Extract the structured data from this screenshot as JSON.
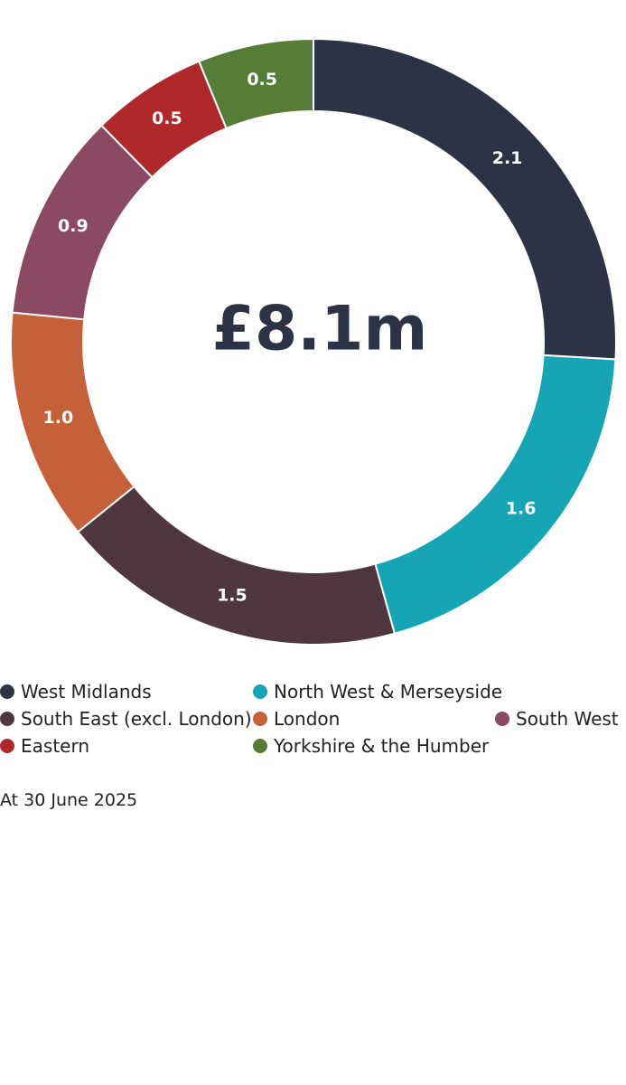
{
  "chart_data": {
    "type": "donut",
    "center_label": "£8.1m",
    "categories": [
      "West Midlands",
      "North West & Merseyside",
      "South East (excl. London)",
      "London",
      "South West",
      "Eastern",
      "Yorkshire & the Humber"
    ],
    "values": [
      2.1,
      1.6,
      1.5,
      1.0,
      0.9,
      0.5,
      0.5
    ],
    "value_labels": [
      "2.1",
      "1.6",
      "1.5",
      "1.0",
      "0.9",
      "0.5",
      "0.5"
    ],
    "colors": [
      "#2b3344",
      "#15a5b4",
      "#4f3740",
      "#c4613a",
      "#8b4a62",
      "#b0292a",
      "#567d38"
    ],
    "note": "At 30 June 2025"
  }
}
